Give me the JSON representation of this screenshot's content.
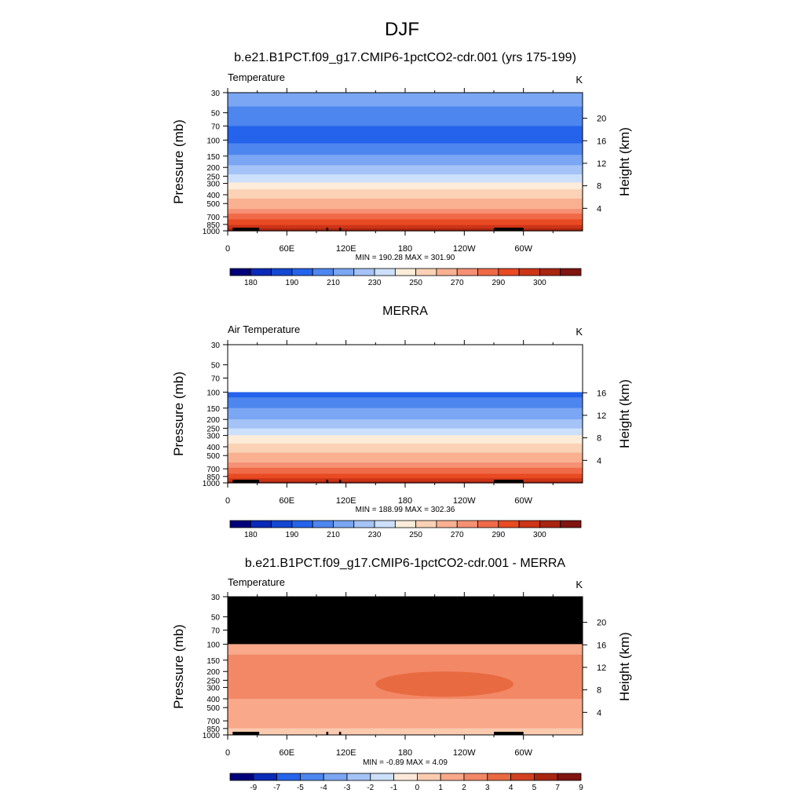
{
  "title": "DJF",
  "colors": {
    "ramp": [
      "#00007a",
      "#0a2ab8",
      "#1448d2",
      "#2563eb",
      "#4e86ef",
      "#7aa6f3",
      "#a5c3f6",
      "#cce0fb",
      "#fcecd9",
      "#fbd2b6",
      "#f9b191",
      "#f59074",
      "#f06a48",
      "#e84a22",
      "#cc3518",
      "#a82510",
      "#7f1410"
    ],
    "diff_ramp": [
      "#00007a",
      "#0a2ab8",
      "#2563eb",
      "#4e86ef",
      "#7aa6f3",
      "#a5c3f6",
      "#cce0fb",
      "#fde9d9",
      "#fbcbb0",
      "#f9a889",
      "#f28866",
      "#e86a40",
      "#d24020",
      "#a82510",
      "#7f1410"
    ],
    "terrain": "#000000",
    "missing": "#000000"
  },
  "panels": [
    {
      "title": "b.e21.B1PCT.f09_g17.CMIP6-1pctCO2-cdr.001 (yrs 175-199)",
      "left_label": "Temperature",
      "units": "K",
      "ylabel": "Pressure (mb)",
      "y2label": "Height (km)",
      "stats": "MIN = 190.28  MAX = 301.90",
      "colorbar_labels": [
        "180",
        "190",
        "210",
        "230",
        "250",
        "270",
        "290",
        "300"
      ]
    },
    {
      "title": "MERRA",
      "left_label": "Air Temperature",
      "units": "K",
      "ylabel": "Pressure (mb)",
      "y2label": "Height (km)",
      "stats": "MIN = 188.99  MAX = 302.36",
      "colorbar_labels": [
        "180",
        "190",
        "210",
        "230",
        "250",
        "270",
        "290",
        "300"
      ]
    },
    {
      "title": "b.e21.B1PCT.f09_g17.CMIP6-1pctCO2-cdr.001 - MERRA",
      "left_label": "Temperature",
      "units": "K",
      "ylabel": "Pressure (mb)",
      "y2label": "Height (km)",
      "stats": "MIN = -0.89  MAX =  4.09",
      "colorbar_labels": [
        "-9",
        "-7",
        "-5",
        "-4",
        "-3",
        "-2",
        "-1",
        "0",
        "1",
        "2",
        "3",
        "4",
        "5",
        "7",
        "9"
      ]
    }
  ],
  "chart_data": [
    {
      "type": "heatmap",
      "title": "b.e21.B1PCT.f09_g17.CMIP6-1pctCO2-cdr.001 (yrs 175-199)",
      "variable": "Temperature",
      "units": "K",
      "xlabel": "",
      "ylabel": "Pressure (mb)",
      "y2label": "Height (km)",
      "x_ticks": [
        "0",
        "60E",
        "120E",
        "180",
        "120W",
        "60W"
      ],
      "x_tick_values": [
        0,
        60,
        120,
        180,
        240,
        300
      ],
      "xlim": [
        0,
        360
      ],
      "y_ticks": [
        30,
        50,
        70,
        100,
        150,
        200,
        250,
        300,
        400,
        500,
        700,
        850,
        1000
      ],
      "ylim": [
        30,
        1000
      ],
      "y2_ticks": [
        4,
        8,
        12,
        16,
        20
      ],
      "min": 190.28,
      "max": 301.9,
      "levels": [
        180,
        185,
        190,
        200,
        210,
        220,
        230,
        240,
        250,
        260,
        270,
        275,
        280,
        285,
        290,
        295,
        300
      ],
      "profile_pressure": [
        30,
        40,
        50,
        70,
        100,
        130,
        150,
        180,
        200,
        250,
        300,
        350,
        400,
        500,
        600,
        700,
        850,
        925,
        1000
      ],
      "profile_temperature": [
        218,
        212,
        205,
        200,
        198,
        205,
        212,
        218,
        222,
        232,
        242,
        250,
        256,
        265,
        272,
        278,
        284,
        289,
        296
      ],
      "colorbar_labels": [
        "180",
        "190",
        "210",
        "230",
        "250",
        "270",
        "290",
        "300"
      ]
    },
    {
      "type": "heatmap",
      "title": "MERRA",
      "variable": "Air Temperature",
      "units": "K",
      "xlabel": "",
      "ylabel": "Pressure (mb)",
      "y2label": "Height (km)",
      "x_ticks": [
        "0",
        "60E",
        "120E",
        "180",
        "120W",
        "60W"
      ],
      "x_tick_values": [
        0,
        60,
        120,
        180,
        240,
        300
      ],
      "xlim": [
        0,
        360
      ],
      "y_ticks": [
        30,
        50,
        70,
        100,
        150,
        200,
        250,
        300,
        400,
        500,
        700,
        850,
        1000
      ],
      "ylim": [
        30,
        1000
      ],
      "y2_ticks": [
        4,
        8,
        12,
        16
      ],
      "data_top_pressure": 100,
      "min": 188.99,
      "max": 302.36,
      "levels": [
        180,
        185,
        190,
        200,
        210,
        220,
        230,
        240,
        250,
        260,
        270,
        275,
        280,
        285,
        290,
        295,
        300
      ],
      "profile_pressure": [
        100,
        130,
        150,
        180,
        200,
        250,
        300,
        350,
        400,
        500,
        600,
        700,
        850,
        925,
        1000
      ],
      "profile_temperature": [
        197,
        203,
        210,
        216,
        220,
        230,
        240,
        248,
        254,
        263,
        270,
        276,
        282,
        287,
        294
      ],
      "colorbar_labels": [
        "180",
        "190",
        "210",
        "230",
        "250",
        "270",
        "290",
        "300"
      ]
    },
    {
      "type": "heatmap",
      "title": "b.e21.B1PCT.f09_g17.CMIP6-1pctCO2-cdr.001 - MERRA",
      "variable": "Temperature",
      "units": "K",
      "xlabel": "",
      "ylabel": "Pressure (mb)",
      "y2label": "Height (km)",
      "x_ticks": [
        "0",
        "60E",
        "120E",
        "180",
        "120W",
        "60W"
      ],
      "x_tick_values": [
        0,
        60,
        120,
        180,
        240,
        300
      ],
      "xlim": [
        0,
        360
      ],
      "y_ticks": [
        30,
        50,
        70,
        100,
        150,
        200,
        250,
        300,
        400,
        500,
        700,
        850,
        1000
      ],
      "ylim": [
        30,
        1000
      ],
      "y2_ticks": [
        4,
        8,
        12,
        16,
        20
      ],
      "missing_above_pressure": 100,
      "min": -0.89,
      "max": 4.09,
      "levels": [
        -9,
        -7,
        -5,
        -4,
        -3,
        -2,
        -1,
        0,
        1,
        2,
        3,
        4,
        5,
        7,
        9
      ],
      "regions": [
        {
          "p_range": [
            100,
            130
          ],
          "lon_range": [
            0,
            360
          ],
          "value": 1.5
        },
        {
          "p_range": [
            130,
            400
          ],
          "lon_range": [
            0,
            360
          ],
          "value": 2.5
        },
        {
          "p_range": [
            200,
            380
          ],
          "lon_range": [
            150,
            290
          ],
          "value": 3.5
        },
        {
          "p_range": [
            400,
            850
          ],
          "lon_range": [
            0,
            360
          ],
          "value": 1.5
        },
        {
          "p_range": [
            850,
            1000
          ],
          "lon_range": [
            0,
            360
          ],
          "value": 0.5
        }
      ],
      "colorbar_labels": [
        "-9",
        "-7",
        "-5",
        "-4",
        "-3",
        "-2",
        "-1",
        "0",
        "1",
        "2",
        "3",
        "4",
        "5",
        "7",
        "9"
      ]
    }
  ]
}
